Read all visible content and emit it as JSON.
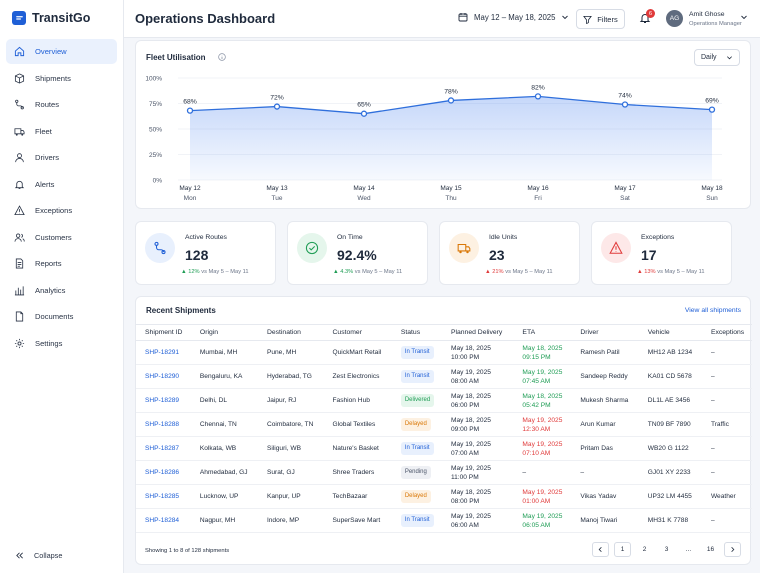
{
  "app": {
    "name": "TransitGo"
  },
  "sidebar": {
    "items": [
      {
        "label": "Overview",
        "icon": "home-icon"
      },
      {
        "label": "Shipments",
        "icon": "box-icon"
      },
      {
        "label": "Routes",
        "icon": "route-icon"
      },
      {
        "label": "Fleet",
        "icon": "truck-icon"
      },
      {
        "label": "Drivers",
        "icon": "user-icon"
      },
      {
        "label": "Alerts",
        "icon": "bell-icon"
      },
      {
        "label": "Exceptions",
        "icon": "warning-icon"
      },
      {
        "label": "Customers",
        "icon": "users-icon"
      },
      {
        "label": "Reports",
        "icon": "report-icon"
      },
      {
        "label": "Analytics",
        "icon": "analytics-icon"
      },
      {
        "label": "Documents",
        "icon": "document-icon"
      },
      {
        "label": "Settings",
        "icon": "gear-icon"
      }
    ],
    "collapse_label": "Collapse"
  },
  "header": {
    "title": "Operations Dashboard",
    "date_range": "May 12 – May 18, 2025",
    "filters_label": "Filters",
    "notification_count": "6",
    "user": {
      "initials": "AG",
      "name": "Amit Ghose",
      "role": "Operations Manager"
    }
  },
  "chart": {
    "title": "Fleet Utilisation",
    "period": "Daily",
    "color": "#2f6fdc"
  },
  "chart_data": {
    "type": "area",
    "title": "Fleet Utilisation",
    "categories": [
      "May 12",
      "May 13",
      "May 14",
      "May 15",
      "May 16",
      "May 17",
      "May 18"
    ],
    "days": [
      "Mon",
      "Tue",
      "Wed",
      "Thu",
      "Fri",
      "Sat",
      "Sun"
    ],
    "values": [
      68,
      72,
      65,
      78,
      82,
      74,
      69
    ],
    "value_labels": [
      "68%",
      "72%",
      "65%",
      "78%",
      "82%",
      "74%",
      "69%"
    ],
    "ylim": [
      0,
      100
    ],
    "yticks": [
      0,
      25,
      50,
      75,
      100
    ],
    "ytick_labels": [
      "0%",
      "25%",
      "50%",
      "75%",
      "100%"
    ],
    "grid": true
  },
  "kpis": [
    {
      "label": "Active Routes",
      "value": "128",
      "delta": "12%",
      "direction": "up",
      "compare": "vs May 5 – May 11",
      "icon": "route-icon",
      "color": "#1f5fd6",
      "bg": "#e8f0fd"
    },
    {
      "label": "On Time",
      "value": "92.4%",
      "delta": "4.3%",
      "direction": "up",
      "compare": "vs May 5 – May 11",
      "icon": "check-circle-icon",
      "color": "#1f9d55",
      "bg": "#e5f6ec"
    },
    {
      "label": "Idle Units",
      "value": "23",
      "delta": "21%",
      "direction": "down",
      "compare": "vs May 5 – May 11",
      "icon": "truck-icon",
      "color": "#d97706",
      "bg": "#fdf1e2"
    },
    {
      "label": "Exceptions",
      "value": "17",
      "delta": "13%",
      "direction": "down",
      "compare": "vs May 5 – May 11",
      "icon": "warning-icon",
      "color": "#e03a3a",
      "bg": "#fde8e8"
    }
  ],
  "shipments": {
    "title": "Recent Shipments",
    "view_all": "View all shipments",
    "columns": [
      "Shipment ID",
      "Origin",
      "Destination",
      "Customer",
      "Status",
      "Planned Delivery",
      "ETA",
      "Driver",
      "Vehicle",
      "Exceptions"
    ],
    "rows": [
      {
        "id": "SHP-18291",
        "origin": "Mumbai, MH",
        "destination": "Pune, MH",
        "customer": "QuickMart Retail",
        "status": "In Transit",
        "status_kind": "transit",
        "planned_date": "May 18, 2025",
        "planned_time": "10:00 PM",
        "eta_date": "May 18, 2025",
        "eta_time": "09:15 PM",
        "eta_kind": "green",
        "driver": "Ramesh Patil",
        "vehicle": "MH12 AB 1234",
        "exceptions": "–"
      },
      {
        "id": "SHP-18290",
        "origin": "Bengaluru, KA",
        "destination": "Hyderabad, TG",
        "customer": "Zest Electronics",
        "status": "In Transit",
        "status_kind": "transit",
        "planned_date": "May 19, 2025",
        "planned_time": "08:00 AM",
        "eta_date": "May 19, 2025",
        "eta_time": "07:45 AM",
        "eta_kind": "green",
        "driver": "Sandeep Reddy",
        "vehicle": "KA01 CD 5678",
        "exceptions": "–"
      },
      {
        "id": "SHP-18289",
        "origin": "Delhi, DL",
        "destination": "Jaipur, RJ",
        "customer": "Fashion Hub",
        "status": "Delivered",
        "status_kind": "delivered",
        "planned_date": "May 18, 2025",
        "planned_time": "06:00 PM",
        "eta_date": "May 18, 2025",
        "eta_time": "05:42 PM",
        "eta_kind": "green",
        "driver": "Mukesh Sharma",
        "vehicle": "DL1L AE 3456",
        "exceptions": "–"
      },
      {
        "id": "SHP-18288",
        "origin": "Chennai, TN",
        "destination": "Coimbatore, TN",
        "customer": "Global Textiles",
        "status": "Delayed",
        "status_kind": "delayed",
        "planned_date": "May 18, 2025",
        "planned_time": "09:00 PM",
        "eta_date": "May 19, 2025",
        "eta_time": "12:30 AM",
        "eta_kind": "red",
        "driver": "Arun Kumar",
        "vehicle": "TN09 BF 7890",
        "exceptions": "Traffic"
      },
      {
        "id": "SHP-18287",
        "origin": "Kolkata, WB",
        "destination": "Siliguri, WB",
        "customer": "Nature's Basket",
        "status": "In Transit",
        "status_kind": "transit",
        "planned_date": "May 19, 2025",
        "planned_time": "07:00 AM",
        "eta_date": "May 19, 2025",
        "eta_time": "07:10 AM",
        "eta_kind": "red",
        "driver": "Pritam Das",
        "vehicle": "WB20 G 1122",
        "exceptions": "–"
      },
      {
        "id": "SHP-18286",
        "origin": "Ahmedabad, GJ",
        "destination": "Surat, GJ",
        "customer": "Shree Traders",
        "status": "Pending",
        "status_kind": "pending",
        "planned_date": "May 19, 2025",
        "planned_time": "11:00 PM",
        "eta_date": "–",
        "eta_time": "",
        "eta_kind": "plain",
        "driver": "–",
        "vehicle": "GJ01 XY 2233",
        "exceptions": "–"
      },
      {
        "id": "SHP-18285",
        "origin": "Lucknow, UP",
        "destination": "Kanpur, UP",
        "customer": "TechBazaar",
        "status": "Delayed",
        "status_kind": "delayed",
        "planned_date": "May 18, 2025",
        "planned_time": "08:00 PM",
        "eta_date": "May 19, 2025",
        "eta_time": "01:00 AM",
        "eta_kind": "red",
        "driver": "Vikas Yadav",
        "vehicle": "UP32 LM 4455",
        "exceptions": "Weather"
      },
      {
        "id": "SHP-18284",
        "origin": "Nagpur, MH",
        "destination": "Indore, MP",
        "customer": "SuperSave Mart",
        "status": "In Transit",
        "status_kind": "transit",
        "planned_date": "May 19, 2025",
        "planned_time": "06:00 AM",
        "eta_date": "May 19, 2025",
        "eta_time": "06:05 AM",
        "eta_kind": "green",
        "driver": "Manoj Tiwari",
        "vehicle": "MH31 K 7788",
        "exceptions": "–"
      }
    ],
    "pagination_info": "Showing 1 to 8 of 128 shipments",
    "pages": [
      "1",
      "2",
      "3",
      "...",
      "16"
    ]
  }
}
